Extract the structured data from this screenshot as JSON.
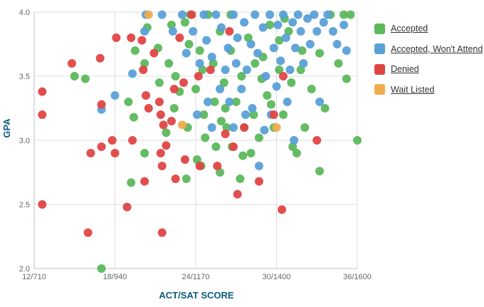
{
  "chart_data": {
    "type": "scatter",
    "title": "",
    "xlabel": "ACT/SAT SCORE",
    "ylabel": "GPA",
    "xlim": [
      12,
      36
    ],
    "ylim": [
      2.0,
      4.0
    ],
    "x_ticks": [
      {
        "value": 12,
        "label": "12/710"
      },
      {
        "value": 18,
        "label": "18/940"
      },
      {
        "value": 24,
        "label": "24/1170"
      },
      {
        "value": 30,
        "label": "30/1400"
      },
      {
        "value": 36,
        "label": "36/1600"
      }
    ],
    "y_ticks": [
      {
        "value": 2.0,
        "label": "2.0"
      },
      {
        "value": 2.5,
        "label": "2.5"
      },
      {
        "value": 3.0,
        "label": "3.0"
      },
      {
        "value": 3.5,
        "label": "3.5"
      },
      {
        "value": 4.0,
        "label": "4.0"
      }
    ],
    "grid": "both",
    "legend_position": "right",
    "series": [
      {
        "name": "Accepted",
        "color": "#5cb85c",
        "points": [
          [
            17,
            2.0
          ],
          [
            15,
            3.5
          ],
          [
            15.8,
            3.48
          ],
          [
            19,
            3.3
          ],
          [
            19.5,
            3.7
          ],
          [
            19.4,
            3.18
          ],
          [
            19.2,
            2.67
          ],
          [
            20.2,
            2.9
          ],
          [
            20.2,
            3.6
          ],
          [
            20.4,
            3.88
          ],
          [
            21.2,
            3.72
          ],
          [
            21.3,
            3.45
          ],
          [
            22,
            3.6
          ],
          [
            22.2,
            3.9
          ],
          [
            22.4,
            3.25
          ],
          [
            22.5,
            3.5
          ],
          [
            23.2,
            3.92
          ],
          [
            23.5,
            3.75
          ],
          [
            23.4,
            3.1
          ],
          [
            23.3,
            2.7
          ],
          [
            23.6,
            3.98
          ],
          [
            24,
            3.4
          ],
          [
            24.1,
            2.85
          ],
          [
            24.4,
            2.8
          ],
          [
            24.3,
            3.7
          ],
          [
            24.5,
            3.55
          ],
          [
            24.6,
            3.2
          ],
          [
            24.9,
            3.98
          ],
          [
            25.3,
            3.6
          ],
          [
            25.5,
            2.95
          ],
          [
            25.4,
            3.3
          ],
          [
            25.8,
            3.85
          ],
          [
            25.8,
            2.75
          ],
          [
            26.1,
            3.45
          ],
          [
            26.3,
            3.1
          ],
          [
            26.6,
            3.7
          ],
          [
            26.7,
            2.95
          ],
          [
            26.6,
            3.98
          ],
          [
            27,
            3.3
          ],
          [
            27.3,
            2.7
          ],
          [
            27.4,
            3.5
          ],
          [
            27.5,
            2.88
          ],
          [
            27.9,
            3.8
          ],
          [
            28.1,
            2.9
          ],
          [
            28.3,
            3.2
          ],
          [
            28.4,
            3.6
          ],
          [
            28.7,
            3.02
          ],
          [
            29,
            3.65
          ],
          [
            29.3,
            3.35
          ],
          [
            29.5,
            3.9
          ],
          [
            29.8,
            3.1
          ],
          [
            30.2,
            3.55
          ],
          [
            30.2,
            3.78
          ],
          [
            30.5,
            3.2
          ],
          [
            30.6,
            3.95
          ],
          [
            31.1,
            3.45
          ],
          [
            31.2,
            2.95
          ],
          [
            31.5,
            2.9
          ],
          [
            31.9,
            3.7
          ],
          [
            32.1,
            3.1
          ],
          [
            32.6,
            3.4
          ],
          [
            33.2,
            3.68
          ],
          [
            33.2,
            2.76
          ],
          [
            33.6,
            3.25
          ],
          [
            34,
            3.98
          ],
          [
            34.6,
            3.6
          ],
          [
            35,
            3.98
          ],
          [
            35.2,
            3.48
          ],
          [
            36,
            3.0
          ],
          [
            35.5,
            3.98
          ],
          [
            26.2,
            3.25
          ],
          [
            27.6,
            3.1
          ],
          [
            28.9,
            3.48
          ],
          [
            25.9,
            3.15
          ],
          [
            24.7,
            3.02
          ],
          [
            22.8,
            3.38
          ],
          [
            21.8,
            3.06
          ],
          [
            29.6,
            3.28
          ],
          [
            31.8,
            3.55
          ],
          [
            30.9,
            3.85
          ]
        ]
      },
      {
        "name": "Accepted, Won't Attend",
        "color": "#5aa0d8",
        "points": [
          [
            17,
            3.24
          ],
          [
            18,
            3.35
          ],
          [
            19.3,
            3.52
          ],
          [
            20.3,
            3.98
          ],
          [
            20.2,
            3.85
          ],
          [
            21.5,
            3.98
          ],
          [
            22.3,
            3.85
          ],
          [
            23,
            3.98
          ],
          [
            23.3,
            3.68
          ],
          [
            23.8,
            3.85
          ],
          [
            24.1,
            3.2
          ],
          [
            24.3,
            3.6
          ],
          [
            24.6,
            3.98
          ],
          [
            24.8,
            3.78
          ],
          [
            24.9,
            3.3
          ],
          [
            25.2,
            3.65
          ],
          [
            25.2,
            3.1
          ],
          [
            25.5,
            3.98
          ],
          [
            25.8,
            3.4
          ],
          [
            25.9,
            3.88
          ],
          [
            26.2,
            3.55
          ],
          [
            26.4,
            3.72
          ],
          [
            26.5,
            3.3
          ],
          [
            26.8,
            3.98
          ],
          [
            27,
            3.6
          ],
          [
            27.1,
            3.8
          ],
          [
            27.4,
            3.4
          ],
          [
            27.6,
            3.92
          ],
          [
            27.8,
            3.55
          ],
          [
            28.1,
            3.75
          ],
          [
            28.2,
            3.25
          ],
          [
            28.4,
            3.98
          ],
          [
            28.6,
            3.68
          ],
          [
            28.7,
            2.8
          ],
          [
            29,
            3.88
          ],
          [
            29.2,
            3.5
          ],
          [
            29.5,
            3.98
          ],
          [
            29.6,
            3.2
          ],
          [
            29.8,
            3.72
          ],
          [
            30,
            3.42
          ],
          [
            30.1,
            3.9
          ],
          [
            30.3,
            3.62
          ],
          [
            30.5,
            3.98
          ],
          [
            30.7,
            3.8
          ],
          [
            30.8,
            3.3
          ],
          [
            31,
            3.55
          ],
          [
            31.2,
            3.92
          ],
          [
            31.4,
            3.72
          ],
          [
            31.6,
            3.98
          ],
          [
            31.8,
            3.85
          ],
          [
            32,
            3.6
          ],
          [
            32.3,
            3.95
          ],
          [
            32.5,
            3.75
          ],
          [
            32.8,
            3.98
          ],
          [
            33,
            3.85
          ],
          [
            33.2,
            3.3
          ],
          [
            33.5,
            3.92
          ],
          [
            33.8,
            3.98
          ],
          [
            34.2,
            3.85
          ],
          [
            34.5,
            3.75
          ],
          [
            35,
            3.9
          ],
          [
            35.2,
            3.7
          ],
          [
            31.3,
            3.0
          ],
          [
            26.8,
            3.1
          ],
          [
            27.7,
            3.2
          ],
          [
            29.1,
            3.08
          ]
        ]
      },
      {
        "name": "Denied",
        "color": "#e04545",
        "points": [
          [
            12.6,
            2.5
          ],
          [
            12.6,
            3.38
          ],
          [
            12.6,
            3.2
          ],
          [
            14.8,
            3.6
          ],
          [
            16,
            2.28
          ],
          [
            16.2,
            2.9
          ],
          [
            16.9,
            3.64
          ],
          [
            17,
            2.95
          ],
          [
            17,
            3.28
          ],
          [
            17.8,
            3
          ],
          [
            18.1,
            3.8
          ],
          [
            18,
            2.9
          ],
          [
            18.9,
            2.48
          ],
          [
            19.2,
            3.8
          ],
          [
            19.3,
            3.0
          ],
          [
            20,
            3.78
          ],
          [
            20.2,
            2.68
          ],
          [
            20.3,
            3.35
          ],
          [
            20.1,
            3.55
          ],
          [
            20.5,
            3.25
          ],
          [
            21.5,
            2.28
          ],
          [
            21.4,
            3.2
          ],
          [
            21.5,
            2.8
          ],
          [
            21.4,
            2.9
          ],
          [
            21.6,
            3.12
          ],
          [
            21.8,
            2.96
          ],
          [
            21.3,
            3.3
          ],
          [
            22.2,
            3.15
          ],
          [
            22.4,
            3.4
          ],
          [
            22.5,
            2.7
          ],
          [
            23.1,
            3.45
          ],
          [
            23.2,
            2.85
          ],
          [
            23.7,
            3.98
          ],
          [
            24.2,
            3.5
          ],
          [
            24.3,
            2.8
          ],
          [
            25.1,
            3.55
          ],
          [
            25.6,
            2.8
          ],
          [
            26.2,
            3.05
          ],
          [
            26.5,
            3.85
          ],
          [
            26.8,
            2.95
          ],
          [
            27.1,
            2.58
          ],
          [
            27.6,
            3.1
          ],
          [
            28.7,
            2.68
          ],
          [
            29.8,
            3.2
          ],
          [
            30.4,
            2.46
          ],
          [
            30.5,
            3.5
          ],
          [
            33,
            3.0
          ],
          [
            22.8,
            3.8
          ],
          [
            20.9,
            3.68
          ]
        ]
      },
      {
        "name": "Wait Listed",
        "color": "#f0ad4e",
        "points": [
          [
            20.5,
            3.98
          ],
          [
            23,
            3.12
          ],
          [
            30,
            3.1
          ]
        ]
      }
    ]
  }
}
